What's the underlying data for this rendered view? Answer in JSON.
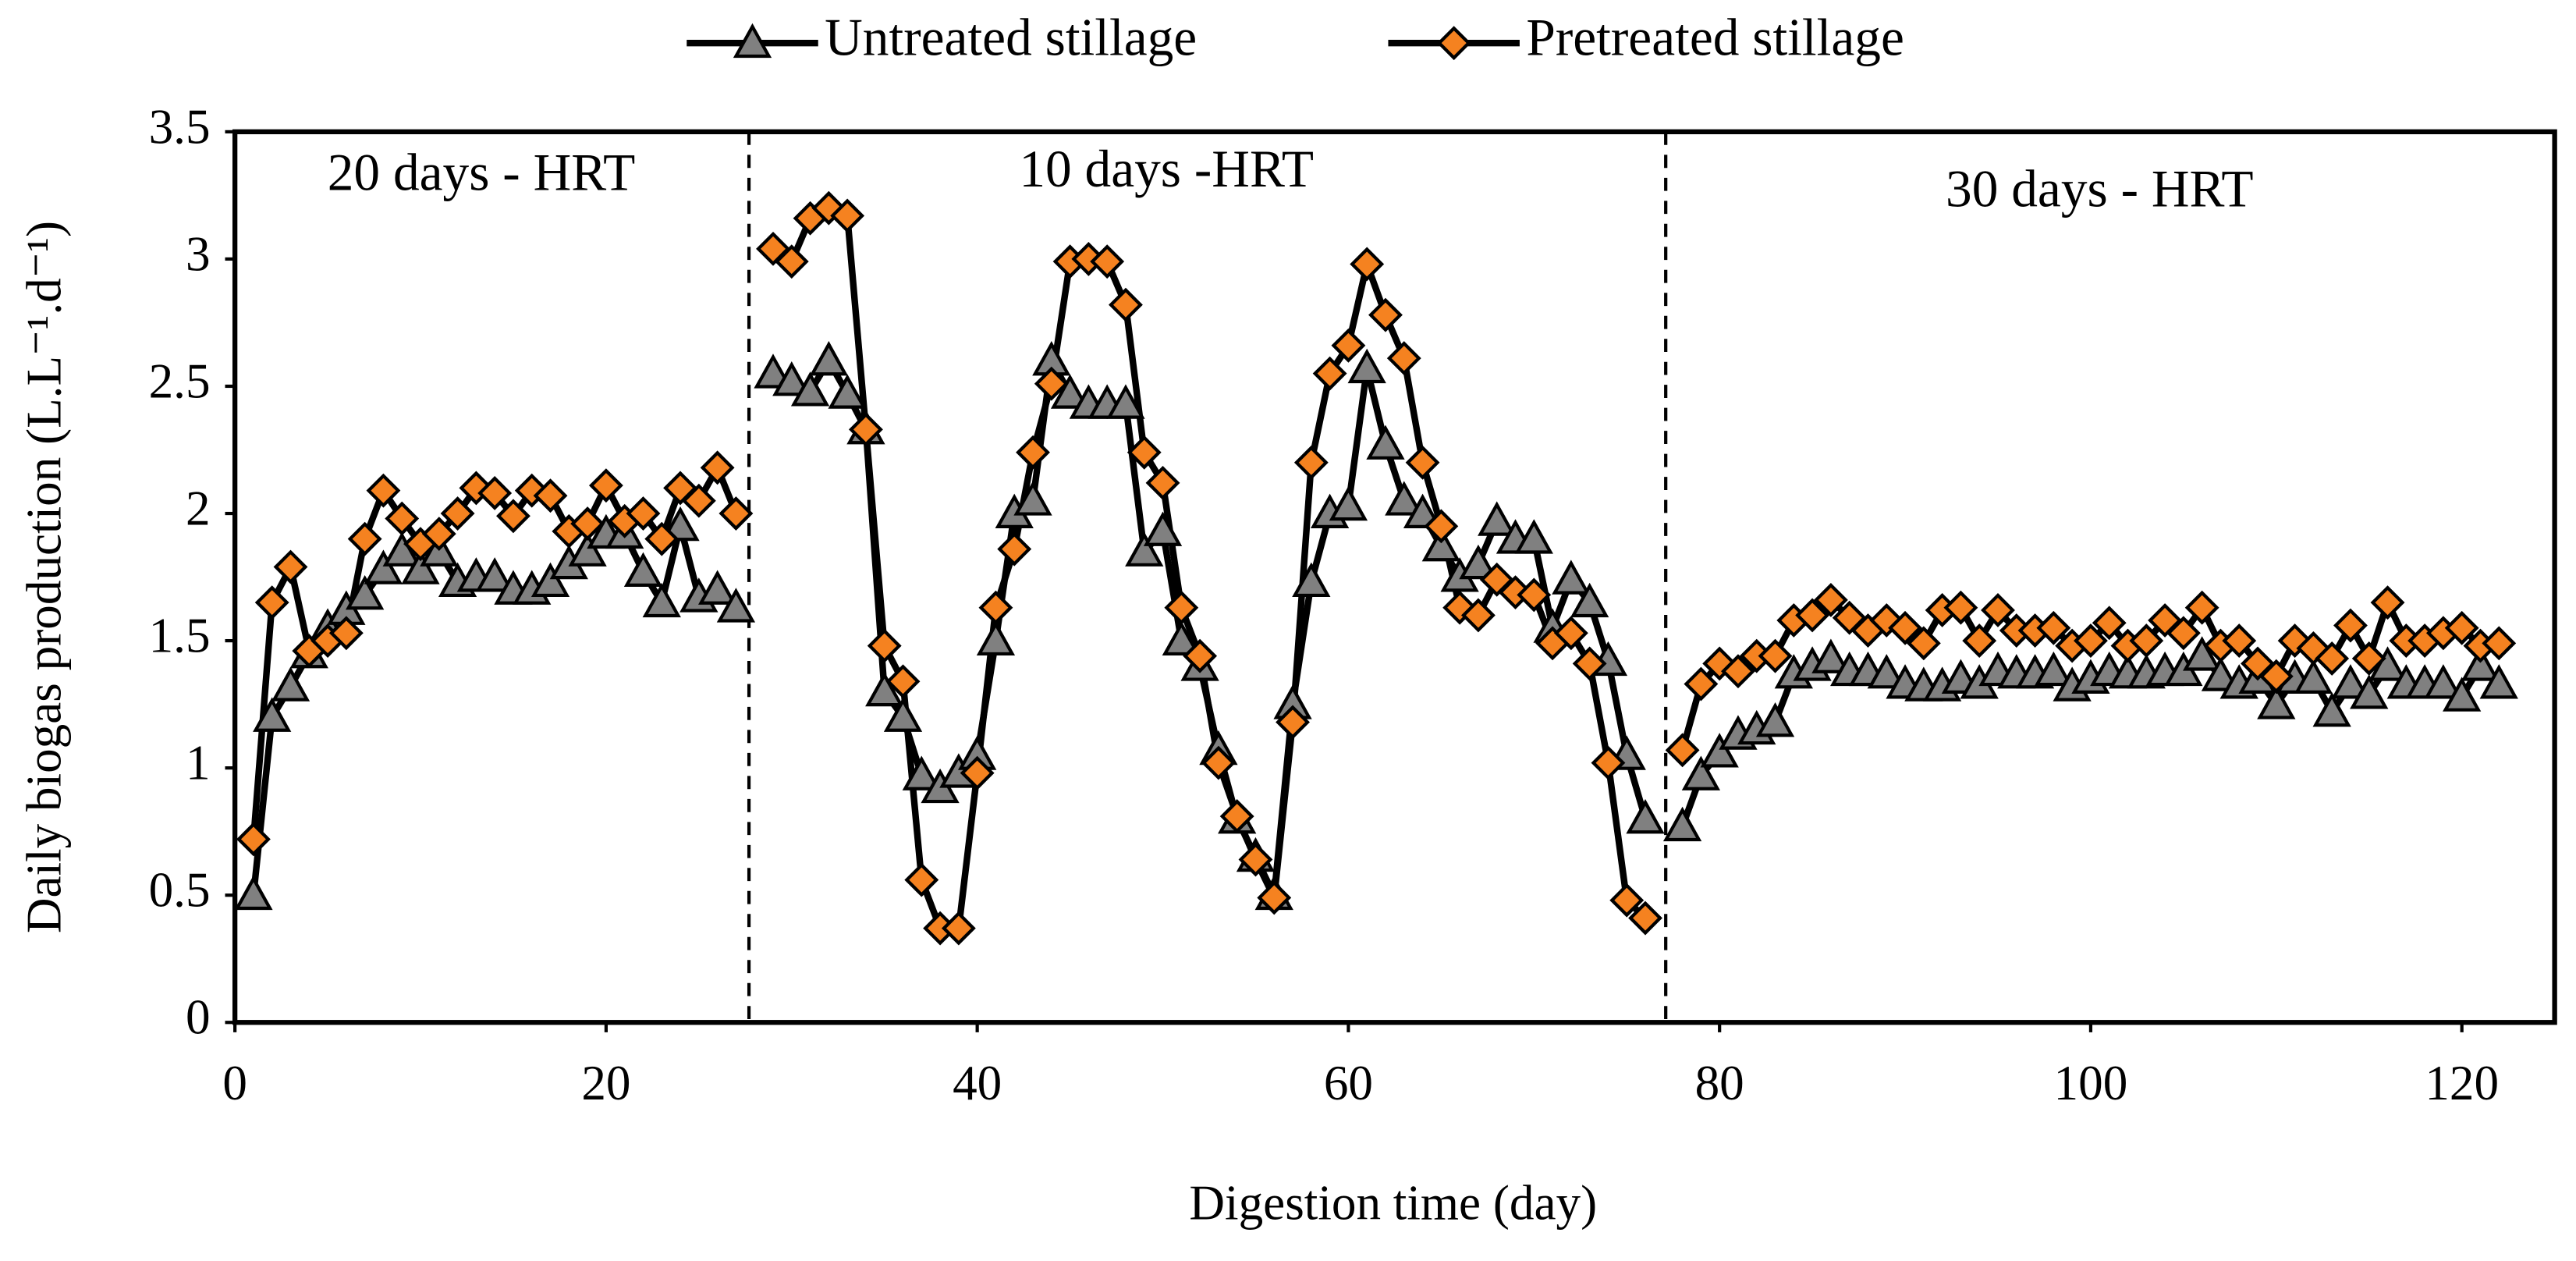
{
  "chart_data": {
    "type": "line",
    "xlabel": "Digestion time (day)",
    "ylabel": "Daily biogas production (L.L⁻¹.d⁻¹)",
    "annotations": [
      "20 days - HRT",
      "10 days -HRT",
      "30 days - HRT"
    ],
    "dividers": [
      27.7,
      77.1
    ],
    "x": [
      1,
      2,
      3,
      4,
      5,
      6,
      7,
      8,
      9,
      10,
      11,
      12,
      13,
      14,
      15,
      16,
      17,
      18,
      19,
      20,
      21,
      22,
      23,
      24,
      25,
      26,
      27,
      28,
      29,
      30,
      31,
      32,
      33,
      34,
      35,
      36,
      37,
      38,
      39,
      40,
      41,
      42,
      43,
      44,
      45,
      46,
      47,
      48,
      49,
      50,
      51,
      52,
      53,
      54,
      55,
      56,
      57,
      58,
      59,
      60,
      61,
      62,
      63,
      64,
      65,
      66,
      67,
      68,
      69,
      70,
      71,
      72,
      73,
      74,
      75,
      76,
      77,
      78,
      79,
      80,
      81,
      82,
      83,
      84,
      85,
      86,
      87,
      88,
      89,
      90,
      91,
      92,
      93,
      94,
      95,
      96,
      97,
      98,
      99,
      100,
      101,
      102,
      103,
      104,
      105,
      106,
      107,
      108,
      109,
      110,
      111,
      112,
      113,
      114,
      115,
      116,
      117,
      118,
      119,
      120,
      121,
      122
    ],
    "series": [
      {
        "name": "Untreated stillage",
        "color": "#808080",
        "marker": "triangle",
        "values": [
          0.5,
          1.2,
          1.32,
          1.45,
          1.55,
          1.62,
          1.68,
          1.78,
          1.85,
          1.78,
          1.85,
          1.73,
          1.75,
          1.75,
          1.7,
          1.7,
          1.73,
          1.8,
          1.85,
          1.92,
          1.92,
          1.77,
          1.65,
          1.95,
          1.67,
          1.7,
          1.63,
          null,
          2.55,
          2.52,
          2.48,
          2.6,
          2.47,
          2.33,
          1.3,
          1.2,
          0.97,
          0.92,
          0.98,
          1.05,
          1.5,
          2.0,
          2.05,
          2.6,
          2.47,
          2.43,
          2.43,
          2.43,
          1.85,
          1.93,
          1.5,
          1.4,
          1.07,
          0.8,
          0.65,
          0.5,
          1.25,
          1.73,
          2.0,
          2.03,
          2.57,
          2.27,
          2.05,
          2.0,
          1.87,
          1.75,
          1.8,
          1.97,
          1.9,
          1.9,
          1.55,
          1.74,
          1.65,
          1.42,
          1.05,
          0.8,
          null,
          0.77,
          0.97,
          1.06,
          1.13,
          1.15,
          1.18,
          1.37,
          1.4,
          1.43,
          1.38,
          1.38,
          1.37,
          1.33,
          1.32,
          1.32,
          1.35,
          1.33,
          1.38,
          1.37,
          1.37,
          1.38,
          1.32,
          1.35,
          1.38,
          1.37,
          1.37,
          1.38,
          1.38,
          1.44,
          1.36,
          1.33,
          1.35,
          1.25,
          1.35,
          1.35,
          1.22,
          1.33,
          1.29,
          1.4,
          1.33,
          1.33,
          1.33,
          1.28,
          1.4,
          1.33
        ]
      },
      {
        "name": "Pretreated stillage",
        "color": "#f58220",
        "marker": "diamond",
        "values": [
          0.72,
          1.65,
          1.79,
          1.46,
          1.5,
          1.53,
          1.9,
          2.09,
          1.98,
          1.88,
          1.92,
          2.0,
          2.1,
          2.08,
          1.99,
          2.09,
          2.07,
          1.93,
          1.96,
          2.11,
          1.97,
          2.0,
          1.9,
          2.1,
          2.05,
          2.18,
          2.0,
          null,
          3.04,
          2.99,
          3.16,
          3.2,
          3.17,
          2.33,
          1.48,
          1.34,
          0.56,
          0.37,
          0.37,
          0.98,
          1.63,
          1.86,
          2.24,
          2.51,
          2.99,
          3.0,
          2.99,
          2.82,
          2.24,
          2.12,
          1.63,
          1.44,
          1.02,
          0.81,
          0.64,
          0.49,
          1.18,
          2.2,
          2.55,
          2.66,
          2.98,
          2.78,
          2.61,
          2.2,
          1.95,
          1.63,
          1.6,
          1.74,
          1.69,
          1.68,
          1.49,
          1.53,
          1.41,
          1.02,
          0.48,
          0.41,
          null,
          1.07,
          1.33,
          1.41,
          1.38,
          1.44,
          1.44,
          1.58,
          1.6,
          1.66,
          1.59,
          1.54,
          1.58,
          1.55,
          1.49,
          1.62,
          1.63,
          1.5,
          1.62,
          1.54,
          1.54,
          1.55,
          1.48,
          1.5,
          1.57,
          1.48,
          1.5,
          1.58,
          1.53,
          1.63,
          1.48,
          1.5,
          1.41,
          1.36,
          1.5,
          1.47,
          1.43,
          1.56,
          1.43,
          1.65,
          1.5,
          1.5,
          1.53,
          1.55,
          1.48,
          1.49
        ]
      }
    ],
    "xlim": [
      0,
      125
    ],
    "xticks": [
      0,
      20,
      40,
      60,
      80,
      100,
      120
    ],
    "ylim": [
      0,
      3.5
    ],
    "yticks": [
      0,
      0.5,
      1,
      1.5,
      2,
      2.5,
      3,
      3.5
    ],
    "legend": "top"
  }
}
